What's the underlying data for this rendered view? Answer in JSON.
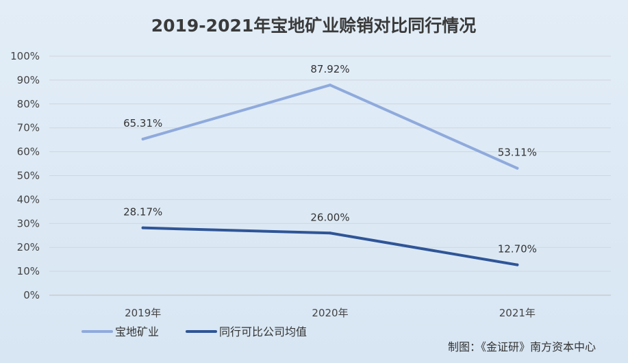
{
  "chart_data": {
    "type": "line",
    "title": "2019-2021年宝地矿业赊销对比同行情况",
    "categories": [
      "2019年",
      "2020年",
      "2021年"
    ],
    "ylim": [
      0,
      100
    ],
    "yticks": [
      "0%",
      "10%",
      "20%",
      "30%",
      "40%",
      "50%",
      "60%",
      "70%",
      "80%",
      "90%",
      "100%"
    ],
    "series": [
      {
        "name": "宝地矿业",
        "values": [
          65.31,
          87.92,
          53.11
        ],
        "labels": [
          "65.31%",
          "87.92%",
          "53.11%"
        ],
        "color": "#8faadc"
      },
      {
        "name": "同行可比公司均值",
        "values": [
          28.17,
          26.0,
          12.7
        ],
        "labels": [
          "28.17%",
          "26.00%",
          "12.70%"
        ],
        "color": "#2f5597"
      }
    ],
    "legend_position": "bottom-left",
    "grid": true
  },
  "credit": "制图：《金证研》南方资本中心"
}
